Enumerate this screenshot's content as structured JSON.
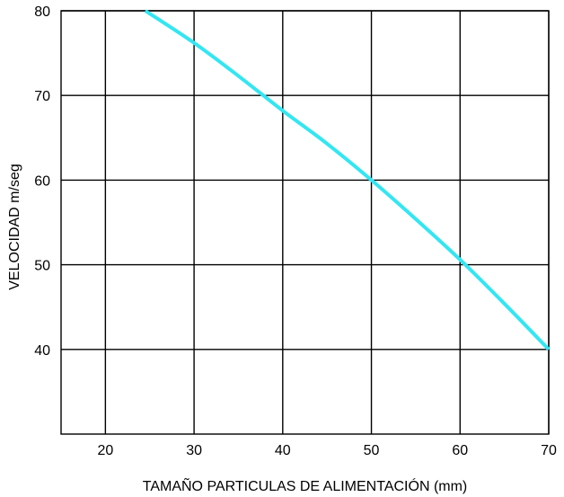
{
  "chart_data": {
    "type": "line",
    "title": "",
    "xlabel": "TAMAÑO PARTICULAS DE ALIMENTACIÓN (mm)",
    "ylabel": "VELOCIDAD m/seg",
    "xlim": [
      15,
      70
    ],
    "ylim": [
      30,
      80
    ],
    "x_ticks": [
      20,
      30,
      40,
      50,
      60,
      70
    ],
    "y_ticks": [
      40,
      50,
      60,
      70,
      80
    ],
    "grid": true,
    "series": [
      {
        "color": "#33e6f2",
        "x": [
          24.5,
          30,
          35,
          40,
          45,
          50,
          55,
          60,
          65,
          70
        ],
        "y": [
          80,
          76.2,
          72.3,
          68.2,
          64.3,
          60,
          55.4,
          50.6,
          45.4,
          40
        ]
      }
    ]
  }
}
